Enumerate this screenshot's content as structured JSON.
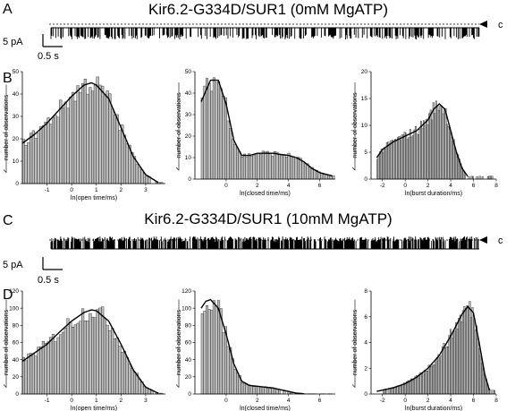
{
  "panels": {
    "A": {
      "label": "A",
      "title": "Kir6.2-G334D/SUR1 (0mM MgATP)",
      "closed_marker": "c"
    },
    "B": {
      "label": "B"
    },
    "C": {
      "label": "C",
      "title": "Kir6.2-G334D/SUR1 (10mM MgATP)",
      "closed_marker": "c"
    },
    "D": {
      "label": "D"
    }
  },
  "scalebar": {
    "current": "5 pA",
    "time": "0.5 s"
  },
  "chart_data": [
    {
      "type": "bar",
      "panel": "B",
      "position": "left",
      "xlabel": "ln(open time/ms)",
      "ylabel": "number of observations",
      "xlim": [
        -2,
        3.8
      ],
      "ylim": [
        0,
        50
      ],
      "yticks": [
        0,
        10,
        20,
        30,
        40,
        50
      ],
      "xticks": [
        -1,
        0,
        1,
        2,
        3
      ],
      "bin_start": -2,
      "bin_width": 0.1,
      "fit": {
        "x": [
          -2,
          -1.5,
          -1,
          -0.5,
          0,
          0.5,
          0.8,
          1,
          1.5,
          2,
          2.5,
          3,
          3.5
        ],
        "y": [
          18,
          22,
          27,
          33,
          39,
          44,
          45,
          44,
          38,
          25,
          12,
          4,
          0.5
        ]
      }
    },
    {
      "type": "bar",
      "panel": "B",
      "position": "middle",
      "xlabel": "ln(closed time/ms)",
      "ylabel": "number of observations",
      "xlim": [
        -2,
        7
      ],
      "ylim": [
        0,
        50
      ],
      "yticks": [
        0,
        10,
        20,
        30,
        40,
        50
      ],
      "xticks": [
        0,
        2,
        4,
        6
      ],
      "bin_start": -1.6,
      "bin_width": 0.15,
      "fit": {
        "x": [
          -1.6,
          -1,
          -0.5,
          0,
          0.5,
          1,
          1.5,
          2,
          3,
          4,
          4.5,
          5,
          5.5,
          6,
          6.8
        ],
        "y": [
          36,
          46,
          46,
          35,
          18,
          11,
          11,
          12,
          12,
          11,
          10,
          8,
          5,
          3,
          1.5
        ]
      }
    },
    {
      "type": "bar",
      "panel": "B",
      "position": "right",
      "xlabel": "ln(burst duration/ms)",
      "ylabel": "number of observations",
      "xlim": [
        -3,
        8
      ],
      "ylim": [
        0,
        20
      ],
      "yticks": [
        0,
        5,
        10,
        15,
        20
      ],
      "xticks": [
        -2,
        0,
        2,
        4,
        6,
        8
      ],
      "bin_start": -2.5,
      "bin_width": 0.12,
      "fit": {
        "x": [
          -2.5,
          -2,
          -1,
          0,
          1,
          2,
          2.5,
          3,
          3.5,
          4,
          4.5,
          5,
          5.5
        ],
        "y": [
          4,
          5.5,
          7,
          8,
          9,
          11,
          13,
          14,
          13,
          9,
          5,
          2,
          0.5
        ]
      }
    },
    {
      "type": "bar",
      "panel": "D",
      "position": "left",
      "xlabel": "ln(open time/ms)",
      "ylabel": "number of observations",
      "xlim": [
        -2,
        3.8
      ],
      "ylim": [
        0,
        120
      ],
      "yticks": [
        0,
        20,
        40,
        60,
        80,
        100,
        120
      ],
      "xticks": [
        -1,
        0,
        1,
        2,
        3
      ],
      "bin_start": -2,
      "bin_width": 0.1,
      "fit": {
        "x": [
          -2,
          -1.5,
          -1,
          -0.5,
          0,
          0.5,
          0.8,
          1,
          1.5,
          2,
          2.5,
          3,
          3.5
        ],
        "y": [
          38,
          48,
          58,
          72,
          85,
          95,
          98,
          97,
          85,
          58,
          28,
          8,
          1
        ]
      }
    },
    {
      "type": "bar",
      "panel": "D",
      "position": "middle",
      "xlabel": "ln(closed time/ms)",
      "ylabel": "number of observations",
      "xlim": [
        -2,
        7
      ],
      "ylim": [
        0,
        120
      ],
      "yticks": [
        0,
        20,
        40,
        60,
        80,
        100,
        120
      ],
      "xticks": [
        0,
        2,
        4,
        6
      ],
      "bin_start": -1.6,
      "bin_width": 0.15,
      "fit": {
        "x": [
          -1.6,
          -1.3,
          -1,
          -0.5,
          0,
          0.5,
          1,
          1.5,
          2,
          3,
          3.5,
          4,
          4.5,
          5
        ],
        "y": [
          100,
          108,
          110,
          100,
          70,
          35,
          15,
          10,
          9,
          7,
          5,
          3,
          1,
          0.3
        ]
      }
    },
    {
      "type": "bar",
      "panel": "D",
      "position": "right",
      "xlabel": "ln(burst duration/ms)",
      "ylabel": "number of observations",
      "xlim": [
        -3,
        8
      ],
      "ylim": [
        0,
        8
      ],
      "yticks": [
        0,
        2,
        4,
        6,
        8
      ],
      "xticks": [
        -2,
        0,
        2,
        4,
        6,
        8
      ],
      "bin_start": -2.3,
      "bin_width": 0.12,
      "fit": {
        "x": [
          -2.5,
          -1,
          0,
          1,
          2,
          3,
          4,
          5,
          5.5,
          6,
          6.5,
          7,
          7.4
        ],
        "y": [
          0.2,
          0.5,
          0.8,
          1.3,
          2,
          3,
          4.5,
          6.2,
          6.8,
          6.3,
          4,
          1.5,
          0.3
        ]
      }
    }
  ]
}
